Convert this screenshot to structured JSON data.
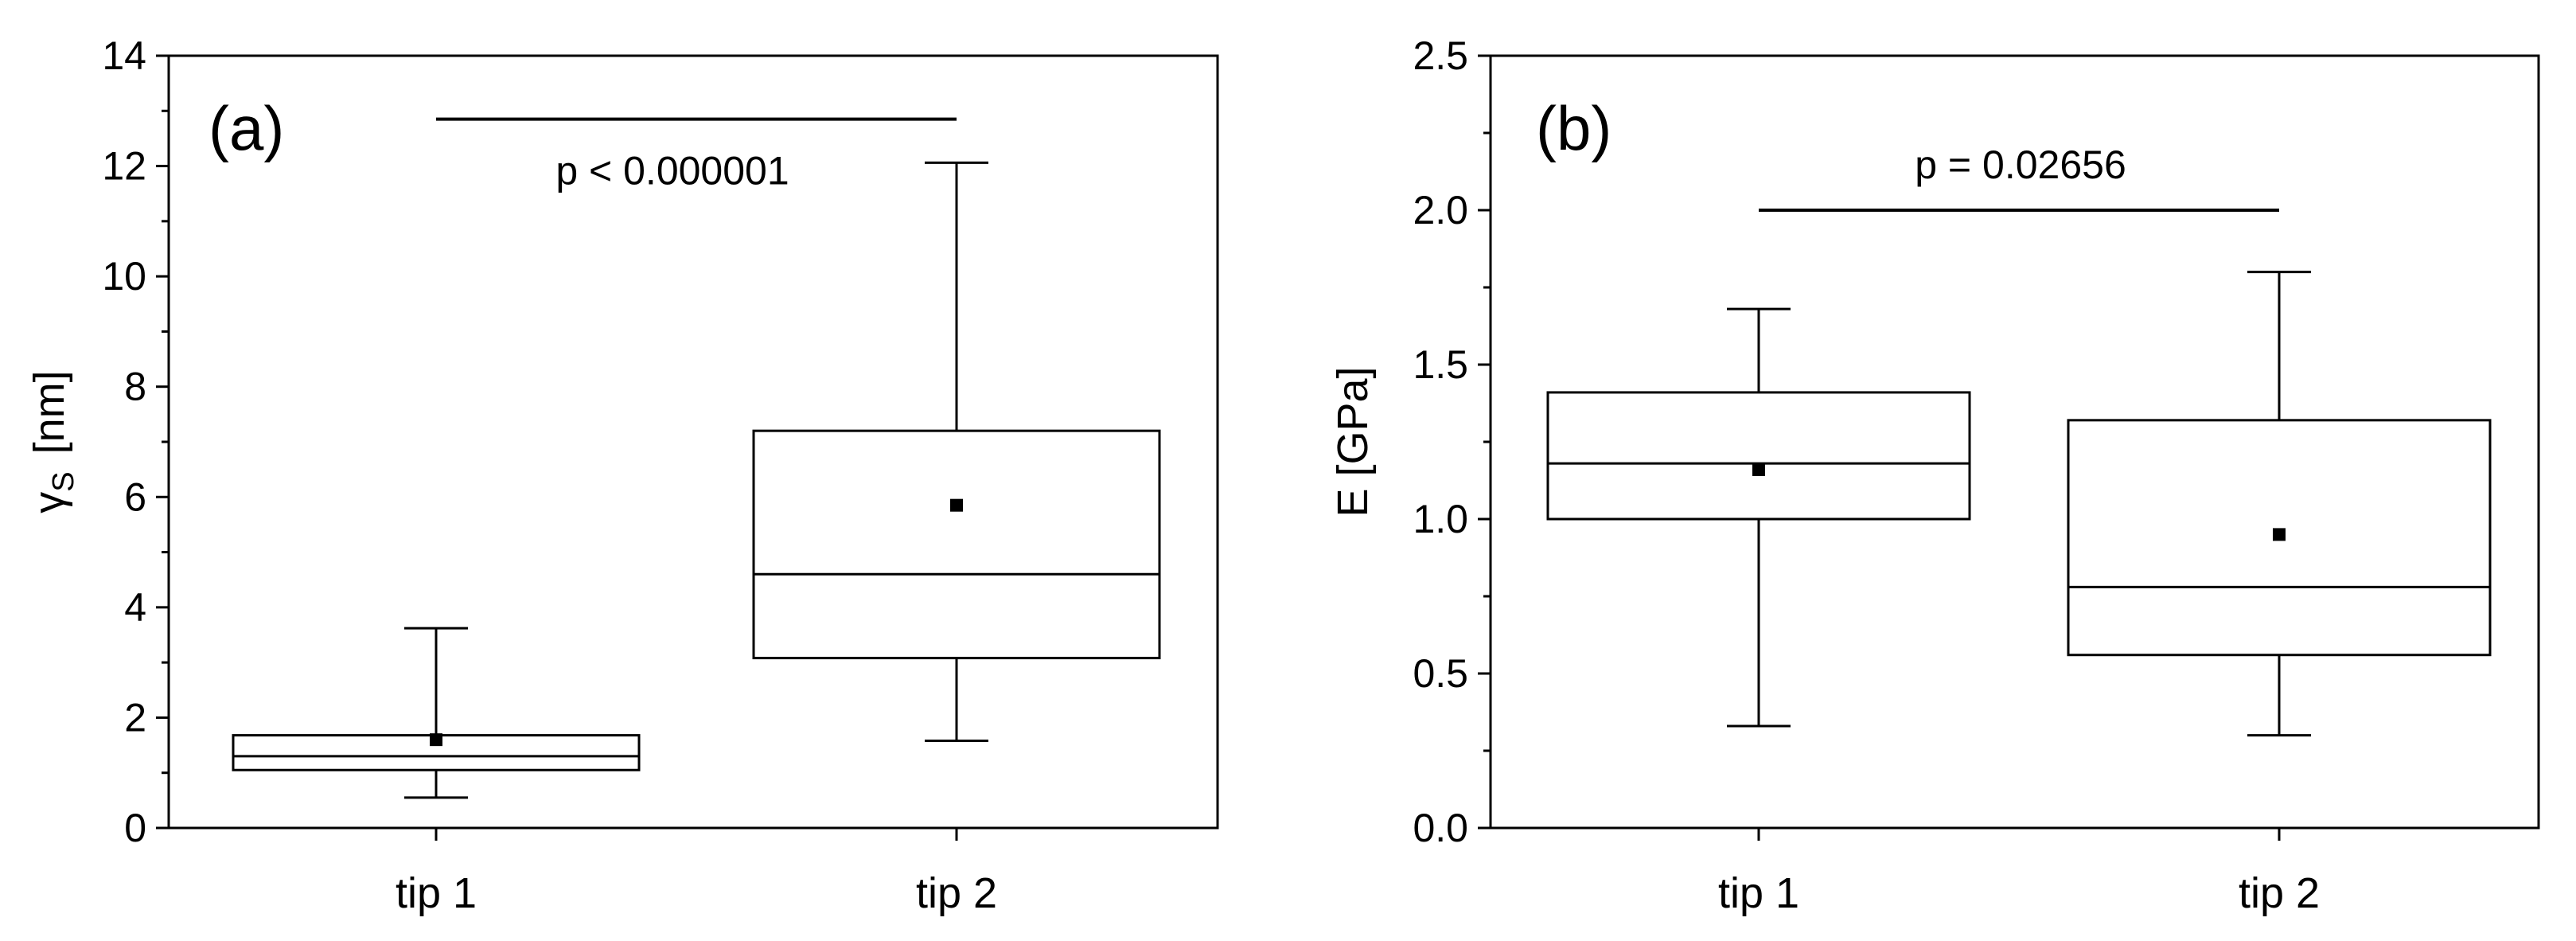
{
  "chart_data": [
    {
      "type": "box",
      "panel_label": "(a)",
      "ylabel_symbol": "γ",
      "ylabel_sub": "S",
      "ylabel_unit": "[nm]",
      "ylim": [
        0,
        14
      ],
      "yticks": [
        0,
        2,
        4,
        6,
        8,
        10,
        12,
        14
      ],
      "ytick_labels": [
        "0",
        "2",
        "4",
        "6",
        "8",
        "10",
        "12",
        "14"
      ],
      "categories": [
        "tip 1",
        "tip 2"
      ],
      "boxes": [
        {
          "category": "tip 1",
          "whisker_low": 0.55,
          "q1": 1.05,
          "median": 1.3,
          "q3": 1.68,
          "whisker_high": 3.62,
          "mean": 1.6
        },
        {
          "category": "tip 2",
          "whisker_low": 1.58,
          "q1": 3.08,
          "median": 4.6,
          "q3": 7.2,
          "whisker_high": 12.06,
          "mean": 5.85
        }
      ],
      "significance": {
        "text": "p < 0.000001",
        "y": 12.85
      },
      "legend": "none",
      "grid": false
    },
    {
      "type": "box",
      "panel_label": "(b)",
      "ylabel": "E [GPa]",
      "ylim": [
        0,
        2.5
      ],
      "yticks": [
        0,
        0.5,
        1.0,
        1.5,
        2.0,
        2.5
      ],
      "ytick_labels": [
        "0.0",
        "0.5",
        "1.0",
        "1.5",
        "2.0",
        "2.5"
      ],
      "categories": [
        "tip 1",
        "tip 2"
      ],
      "boxes": [
        {
          "category": "tip 1",
          "whisker_low": 0.33,
          "q1": 1.0,
          "median": 1.18,
          "q3": 1.41,
          "whisker_high": 1.68,
          "mean": 1.16
        },
        {
          "category": "tip 2",
          "whisker_low": 0.3,
          "q1": 0.56,
          "median": 0.78,
          "q3": 1.32,
          "whisker_high": 1.8,
          "mean": 0.95
        }
      ],
      "significance": {
        "text": "p = 0.02656",
        "y": 2.0
      },
      "legend": "none",
      "grid": false
    }
  ]
}
